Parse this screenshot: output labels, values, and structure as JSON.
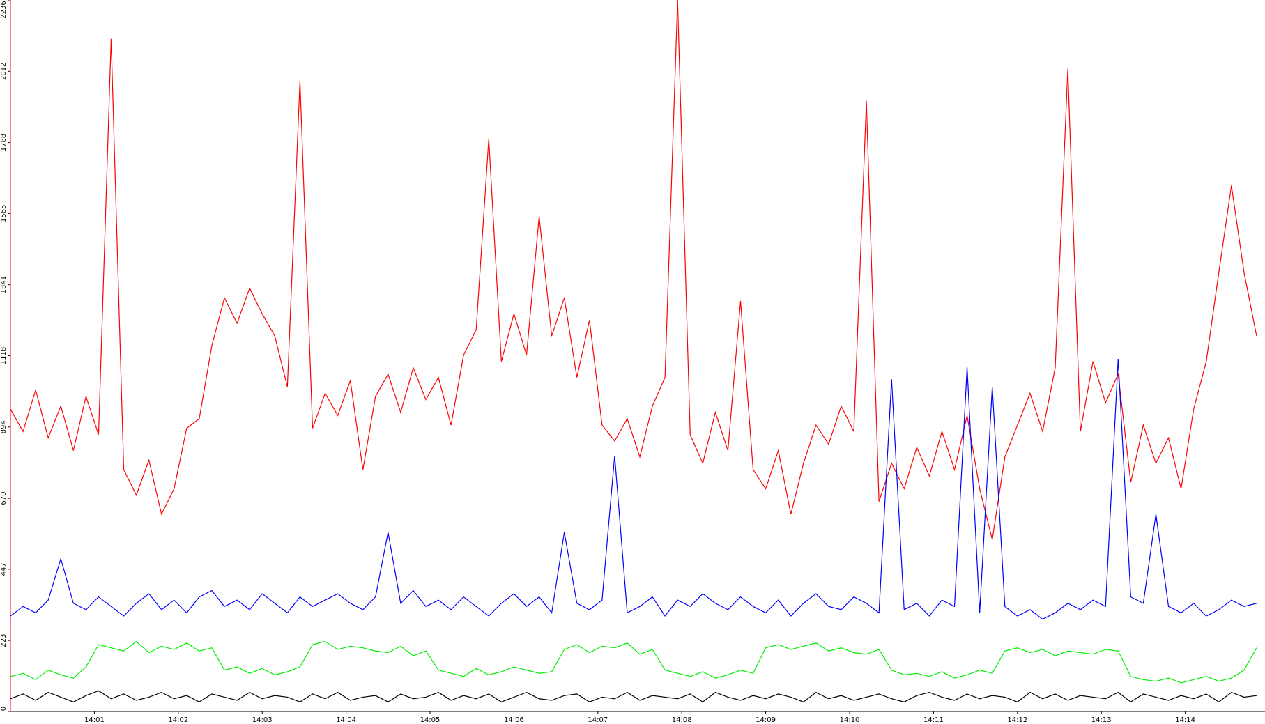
{
  "chart_data": {
    "type": "line",
    "x": [
      0,
      0.15,
      0.3,
      0.45,
      0.6,
      0.75,
      0.9,
      1.05,
      1.2,
      1.35,
      1.5,
      1.65,
      1.8,
      1.95,
      2.1,
      2.25,
      2.4,
      2.55,
      2.7,
      2.85,
      3,
      3.15,
      3.3,
      3.45,
      3.6,
      3.75,
      3.9,
      4.05,
      4.2,
      4.35,
      4.5,
      4.65,
      4.8,
      4.95,
      5.1,
      5.25,
      5.4,
      5.55,
      5.7,
      5.85,
      6,
      6.15,
      6.3,
      6.45,
      6.6,
      6.75,
      6.9,
      7.05,
      7.2,
      7.35,
      7.5,
      7.65,
      7.8,
      7.95,
      8.1,
      8.25,
      8.4,
      8.55,
      8.7,
      8.85,
      9,
      9.15,
      9.3,
      9.45,
      9.6,
      9.75,
      9.9,
      10.05,
      10.2,
      10.35,
      10.5,
      10.65,
      10.8,
      10.95,
      11.1,
      11.25,
      11.4,
      11.55,
      11.7,
      11.85,
      12,
      12.15,
      12.3,
      12.45,
      12.6,
      12.75,
      12.9,
      13.05,
      13.2,
      13.35,
      13.5,
      13.65,
      13.8,
      13.95,
      14.1,
      14.25,
      14.4,
      14.55,
      14.7,
      14.85
    ],
    "series": [
      {
        "color": "#ff0000",
        "values": [
          950,
          880,
          1010,
          860,
          960,
          820,
          990,
          870,
          2114,
          760,
          680,
          790,
          620,
          700,
          890,
          920,
          1150,
          1300,
          1220,
          1330,
          1250,
          1180,
          1020,
          1982,
          890,
          1000,
          930,
          1040,
          760,
          990,
          1060,
          940,
          1080,
          980,
          1050,
          900,
          1120,
          1200,
          1800,
          1100,
          1250,
          1120,
          1556,
          1180,
          1300,
          1050,
          1230,
          900,
          850,
          920,
          800,
          960,
          1050,
          2236,
          870,
          780,
          940,
          820,
          1290,
          760,
          700,
          820,
          620,
          780,
          900,
          840,
          960,
          880,
          1919,
          660,
          780,
          700,
          830,
          740,
          880,
          760,
          930,
          700,
          540,
          800,
          900,
          1000,
          880,
          1080,
          2020,
          880,
          1100,
          970,
          1060,
          720,
          900,
          780,
          860,
          700,
          950,
          1100,
          1380,
          1653,
          1380,
          1180
        ]
      },
      {
        "color": "#0000ff",
        "values": [
          300,
          330,
          310,
          350,
          480,
          340,
          320,
          360,
          330,
          300,
          340,
          370,
          320,
          350,
          310,
          360,
          380,
          330,
          350,
          320,
          370,
          340,
          310,
          360,
          330,
          350,
          370,
          340,
          320,
          360,
          563,
          340,
          380,
          330,
          350,
          320,
          360,
          330,
          300,
          340,
          370,
          330,
          360,
          310,
          563,
          340,
          320,
          350,
          804,
          310,
          330,
          360,
          300,
          350,
          330,
          370,
          340,
          320,
          360,
          330,
          310,
          350,
          300,
          340,
          370,
          330,
          320,
          360,
          340,
          310,
          1044,
          320,
          340,
          300,
          350,
          330,
          1082,
          310,
          1020,
          330,
          300,
          320,
          290,
          310,
          340,
          320,
          350,
          330,
          1108,
          360,
          340,
          620,
          330,
          310,
          340,
          300,
          320,
          350,
          330,
          340
        ]
      },
      {
        "color": "#00ee00",
        "values": [
          110,
          120,
          100,
          130,
          115,
          105,
          140,
          210,
          200,
          190,
          220,
          185,
          205,
          195,
          215,
          190,
          200,
          130,
          140,
          120,
          135,
          115,
          125,
          140,
          210,
          220,
          195,
          205,
          200,
          190,
          185,
          205,
          175,
          190,
          130,
          120,
          110,
          135,
          115,
          125,
          140,
          130,
          120,
          125,
          195,
          210,
          185,
          205,
          200,
          215,
          180,
          195,
          130,
          120,
          110,
          125,
          105,
          115,
          130,
          120,
          200,
          210,
          195,
          205,
          215,
          190,
          200,
          185,
          180,
          195,
          130,
          115,
          120,
          110,
          125,
          105,
          115,
          130,
          120,
          190,
          200,
          185,
          195,
          175,
          190,
          185,
          180,
          195,
          190,
          110,
          100,
          95,
          105,
          90,
          100,
          110,
          95,
          105,
          130,
          200
        ]
      },
      {
        "color": "#000000",
        "values": [
          40,
          55,
          35,
          60,
          45,
          30,
          50,
          65,
          40,
          55,
          35,
          45,
          60,
          40,
          50,
          30,
          55,
          45,
          35,
          60,
          40,
          50,
          45,
          30,
          55,
          40,
          60,
          35,
          45,
          50,
          30,
          55,
          40,
          45,
          60,
          35,
          50,
          40,
          55,
          30,
          45,
          60,
          40,
          35,
          50,
          55,
          30,
          45,
          40,
          60,
          35,
          50,
          45,
          40,
          55,
          30,
          60,
          45,
          35,
          50,
          40,
          55,
          45,
          30,
          60,
          40,
          50,
          35,
          45,
          55,
          40,
          30,
          50,
          60,
          45,
          35,
          55,
          40,
          50,
          45,
          30,
          60,
          40,
          55,
          35,
          50,
          45,
          40,
          60,
          30,
          55,
          45,
          35,
          50,
          40,
          55,
          30,
          60,
          45,
          50
        ]
      }
    ],
    "xlim": [
      0,
      14.95
    ],
    "ylim": [
      0,
      2236
    ],
    "yticks": [
      0,
      223,
      447,
      670,
      894,
      1118,
      1341,
      1565,
      1788,
      2012,
      2236
    ],
    "xticks": [
      {
        "value": 1,
        "label": "14:01"
      },
      {
        "value": 2,
        "label": "14:02"
      },
      {
        "value": 3,
        "label": "14:03"
      },
      {
        "value": 4,
        "label": "14:04"
      },
      {
        "value": 5,
        "label": "14:05"
      },
      {
        "value": 6,
        "label": "14:06"
      },
      {
        "value": 7,
        "label": "14:07"
      },
      {
        "value": 8,
        "label": "14:08"
      },
      {
        "value": 9,
        "label": "14:09"
      },
      {
        "value": 10,
        "label": "14:10"
      },
      {
        "value": 11,
        "label": "14:11"
      },
      {
        "value": 12,
        "label": "14:12"
      },
      {
        "value": 13,
        "label": "14:13"
      },
      {
        "value": 14,
        "label": "14:14"
      }
    ]
  }
}
